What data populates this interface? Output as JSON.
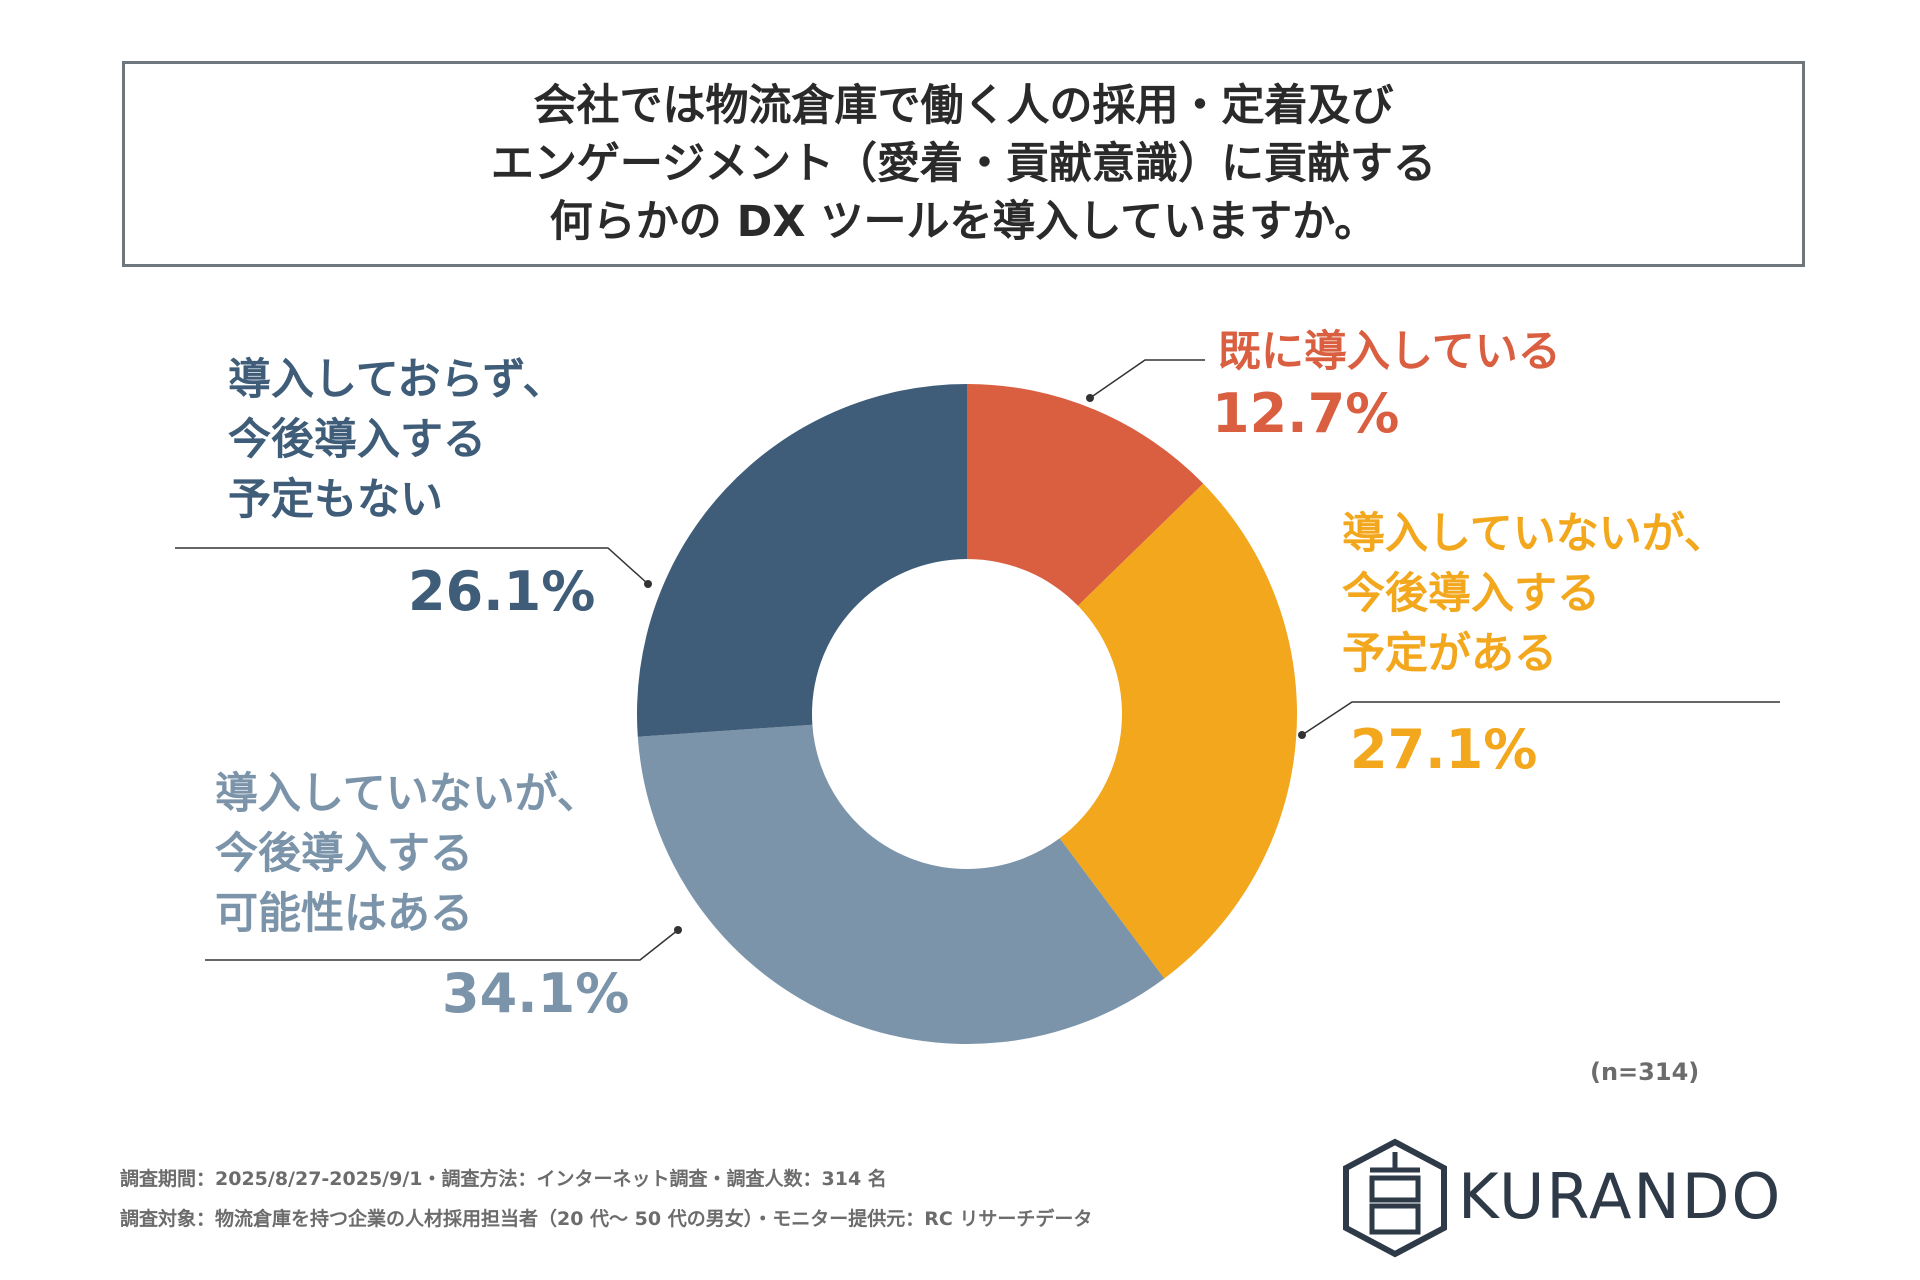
{
  "title": {
    "line1": "会社では物流倉庫で働く人の採用・定着及び",
    "line2": "エンゲージメント（愛着・貢献意識）に貢献する",
    "line3": "何らかの DX ツールを導入していますか。"
  },
  "chart_data": {
    "type": "donut",
    "slices": [
      {
        "label_lines": [
          "既に導入している"
        ],
        "value": 12.7,
        "value_label": "12.7%",
        "color": "#d95f40"
      },
      {
        "label_lines": [
          "導入していないが、",
          "今後導入する",
          "予定がある"
        ],
        "value": 27.1,
        "value_label": "27.1%",
        "color": "#f2a71d"
      },
      {
        "label_lines": [
          "導入していないが、",
          "今後導入する",
          "可能性はある"
        ],
        "value": 34.1,
        "value_label": "34.1%",
        "color": "#7b94a9"
      },
      {
        "label_lines": [
          "導入しておらず、",
          "今後導入する",
          "予定もない"
        ],
        "value": 26.1,
        "value_label": "26.1%",
        "color": "#3f5d78"
      }
    ],
    "sample_size": "(n=314)"
  },
  "footer": {
    "line1": "調査期間：2025/8/27-2025/9/1・調査方法：インターネット調査・調査人数：314 名",
    "line2": "調査対象：物流倉庫を持つ企業の人材採用担当者（20 代〜 50 代の男女）・モニター提供元：RC リサーチデータ"
  },
  "brand": {
    "name": "KURANDO",
    "logo_icon": "kura-hexagon-logo-icon",
    "logo_color": "#2e3a47"
  }
}
